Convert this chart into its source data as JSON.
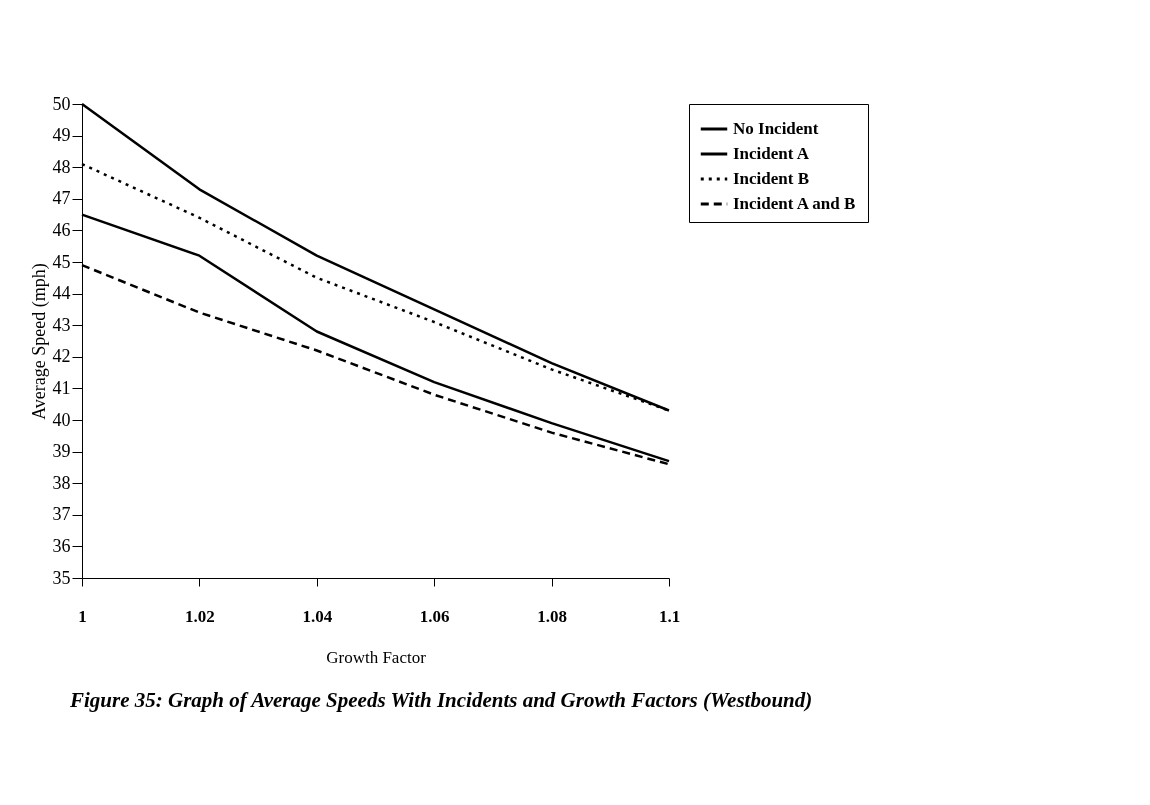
{
  "chart_data": {
    "type": "line",
    "title": "Figure 35:  Graph of Average Speeds With Incidents and Growth Factors (Westbound)",
    "xlabel": "Growth Factor",
    "ylabel": "Average Speed (mph)",
    "categories": [
      "1",
      "1.02",
      "1.04",
      "1.06",
      "1.08",
      "1.1"
    ],
    "series": [
      {
        "name": "No Incident",
        "color": "#000000",
        "line_style": "solid",
        "values": [
          50,
          47.3,
          45.2,
          43.5,
          41.8,
          40.3
        ]
      },
      {
        "name": "Incident A",
        "color": "#000000",
        "line_style": "solid",
        "values": [
          46.5,
          45.2,
          42.8,
          41.2,
          39.9,
          38.7
        ]
      },
      {
        "name": "Incident B",
        "color": "#000000",
        "line_style": "dotted",
        "values": [
          48.1,
          46.4,
          44.5,
          43.1,
          41.6,
          40.3
        ]
      },
      {
        "name": "Incident A and B",
        "color": "#000000",
        "line_style": "dashed",
        "values": [
          44.9,
          43.4,
          42.2,
          40.8,
          39.6,
          38.6
        ]
      }
    ],
    "ylim": [
      35,
      50
    ],
    "yticks": [
      35,
      36,
      37,
      38,
      39,
      40,
      41,
      42,
      43,
      44,
      45,
      46,
      47,
      48,
      49,
      50
    ],
    "grid": false,
    "legend": "right",
    "marker": "none"
  }
}
